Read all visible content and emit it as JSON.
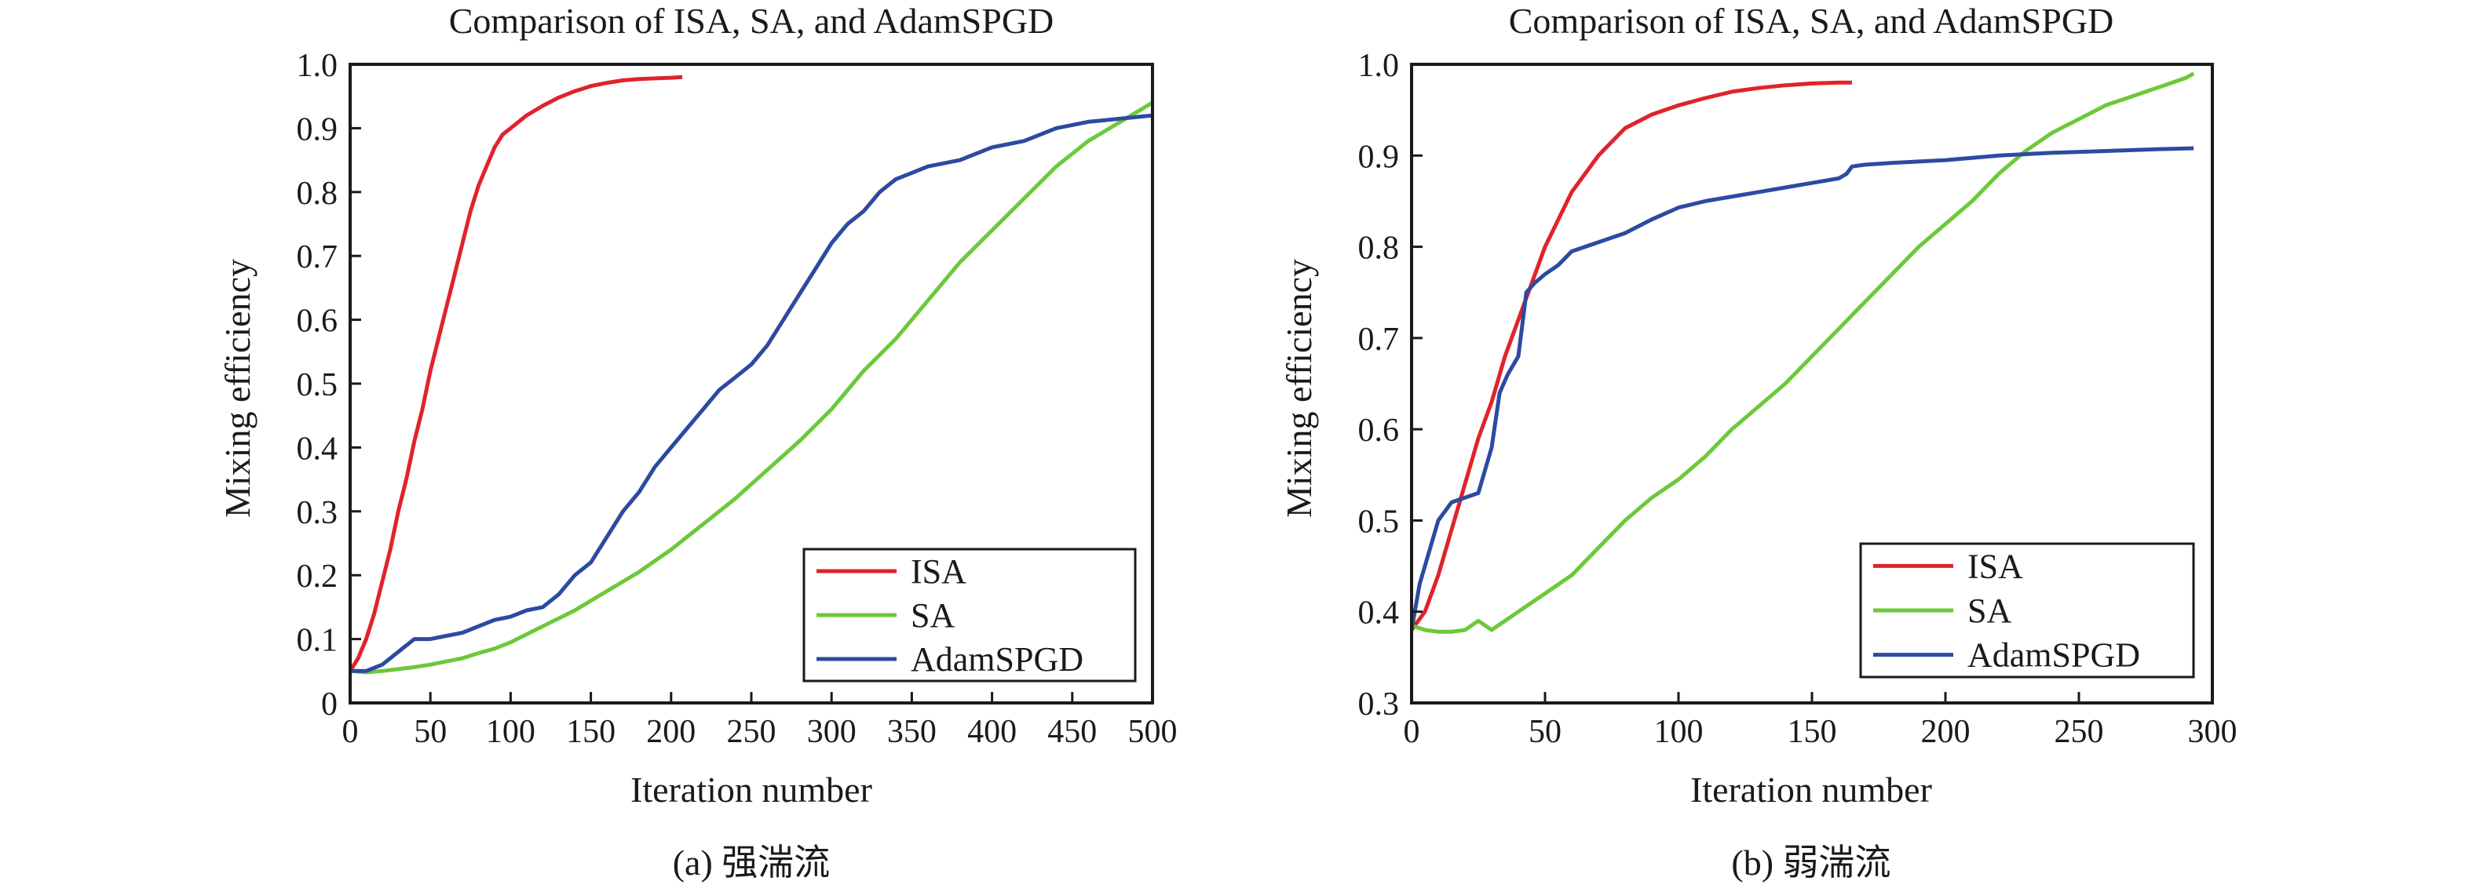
{
  "colors": {
    "ISA": "#e0232b",
    "SA": "#6cc93a",
    "AdamSPGD": "#2c4aa0",
    "axis": "#1a1a1a"
  },
  "chart_data": [
    {
      "type": "line",
      "title": "Comparison of ISA, SA, and AdamSPGD",
      "xlabel": "Iteration number",
      "ylabel": "Mixing efficiency",
      "caption": "(a) 强湍流",
      "xlim": [
        0,
        500
      ],
      "ylim": [
        0,
        1.0
      ],
      "xticks": [
        0,
        50,
        100,
        150,
        200,
        250,
        300,
        350,
        400,
        450,
        500
      ],
      "yticks": [
        0,
        0.1,
        0.2,
        0.3,
        0.4,
        0.5,
        0.6,
        0.7,
        0.8,
        0.9,
        1.0
      ],
      "xtick_labels": [
        "0",
        "50",
        "100",
        "150",
        "200",
        "250",
        "300",
        "350",
        "400",
        "450",
        "500"
      ],
      "ytick_labels": [
        "0",
        "0.1",
        "0.2",
        "0.3",
        "0.4",
        "0.5",
        "0.6",
        "0.7",
        "0.8",
        "0.9",
        "1.0"
      ],
      "grid": false,
      "legend_position": "bottom-right",
      "series": [
        {
          "name": "ISA",
          "x": [
            0,
            5,
            10,
            15,
            20,
            25,
            30,
            35,
            40,
            45,
            50,
            55,
            60,
            65,
            70,
            75,
            80,
            85,
            90,
            95,
            100,
            110,
            120,
            130,
            140,
            150,
            160,
            170,
            180,
            190,
            200,
            207
          ],
          "y": [
            0.05,
            0.07,
            0.1,
            0.14,
            0.19,
            0.24,
            0.3,
            0.35,
            0.41,
            0.46,
            0.52,
            0.57,
            0.62,
            0.67,
            0.72,
            0.77,
            0.81,
            0.84,
            0.87,
            0.89,
            0.9,
            0.92,
            0.935,
            0.948,
            0.958,
            0.966,
            0.971,
            0.975,
            0.977,
            0.978,
            0.979,
            0.98
          ]
        },
        {
          "name": "SA",
          "x": [
            0,
            10,
            20,
            30,
            40,
            50,
            60,
            70,
            80,
            90,
            100,
            120,
            140,
            160,
            180,
            200,
            220,
            240,
            260,
            280,
            300,
            320,
            340,
            360,
            380,
            400,
            420,
            440,
            460,
            480,
            500
          ],
          "y": [
            0.05,
            0.048,
            0.05,
            0.053,
            0.056,
            0.06,
            0.065,
            0.07,
            0.078,
            0.085,
            0.095,
            0.12,
            0.145,
            0.175,
            0.205,
            0.24,
            0.28,
            0.32,
            0.365,
            0.41,
            0.46,
            0.52,
            0.57,
            0.63,
            0.69,
            0.74,
            0.79,
            0.84,
            0.88,
            0.91,
            0.94
          ]
        },
        {
          "name": "AdamSPGD",
          "x": [
            0,
            10,
            20,
            30,
            40,
            50,
            60,
            70,
            80,
            90,
            100,
            110,
            120,
            130,
            140,
            150,
            160,
            170,
            180,
            190,
            200,
            210,
            220,
            230,
            240,
            250,
            260,
            270,
            280,
            290,
            300,
            310,
            320,
            330,
            340,
            350,
            360,
            380,
            400,
            420,
            440,
            460,
            480,
            500
          ],
          "y": [
            0.05,
            0.05,
            0.06,
            0.08,
            0.1,
            0.1,
            0.105,
            0.11,
            0.12,
            0.13,
            0.135,
            0.145,
            0.15,
            0.17,
            0.2,
            0.22,
            0.26,
            0.3,
            0.33,
            0.37,
            0.4,
            0.43,
            0.46,
            0.49,
            0.51,
            0.53,
            0.56,
            0.6,
            0.64,
            0.68,
            0.72,
            0.75,
            0.77,
            0.8,
            0.82,
            0.83,
            0.84,
            0.85,
            0.87,
            0.88,
            0.9,
            0.91,
            0.915,
            0.92
          ]
        }
      ]
    },
    {
      "type": "line",
      "title": "Comparison of ISA, SA, and AdamSPGD",
      "xlabel": "Iteration number",
      "ylabel": "Mixing efficiency",
      "caption": "(b) 弱湍流",
      "xlim": [
        0,
        300
      ],
      "ylim": [
        0.3,
        1.0
      ],
      "xticks": [
        0,
        50,
        100,
        150,
        200,
        250,
        300
      ],
      "yticks": [
        0.3,
        0.4,
        0.5,
        0.6,
        0.7,
        0.8,
        0.9,
        1.0
      ],
      "xtick_labels": [
        "0",
        "50",
        "100",
        "150",
        "200",
        "250",
        "300"
      ],
      "ytick_labels": [
        "0.3",
        "0.4",
        "0.5",
        "0.6",
        "0.7",
        "0.8",
        "0.9",
        "1.0"
      ],
      "grid": false,
      "legend_position": "bottom-right",
      "series": [
        {
          "name": "ISA",
          "x": [
            0,
            5,
            10,
            15,
            20,
            25,
            30,
            35,
            40,
            45,
            50,
            55,
            60,
            65,
            70,
            75,
            80,
            90,
            100,
            110,
            120,
            130,
            140,
            150,
            160,
            165
          ],
          "y": [
            0.38,
            0.4,
            0.44,
            0.49,
            0.54,
            0.59,
            0.63,
            0.68,
            0.72,
            0.76,
            0.8,
            0.83,
            0.86,
            0.88,
            0.9,
            0.915,
            0.93,
            0.945,
            0.955,
            0.963,
            0.97,
            0.974,
            0.977,
            0.979,
            0.98,
            0.98
          ]
        },
        {
          "name": "SA",
          "x": [
            0,
            5,
            10,
            15,
            20,
            25,
            30,
            40,
            50,
            60,
            70,
            80,
            90,
            100,
            110,
            120,
            130,
            140,
            150,
            160,
            170,
            180,
            190,
            200,
            210,
            220,
            230,
            240,
            250,
            260,
            270,
            280,
            290,
            293
          ],
          "y": [
            0.385,
            0.38,
            0.378,
            0.378,
            0.38,
            0.39,
            0.38,
            0.4,
            0.42,
            0.44,
            0.47,
            0.5,
            0.525,
            0.545,
            0.57,
            0.6,
            0.625,
            0.65,
            0.68,
            0.71,
            0.74,
            0.77,
            0.8,
            0.825,
            0.85,
            0.88,
            0.905,
            0.925,
            0.94,
            0.955,
            0.965,
            0.975,
            0.985,
            0.99
          ]
        },
        {
          "name": "AdamSPGD",
          "x": [
            0,
            3,
            6,
            10,
            15,
            20,
            25,
            30,
            33,
            36,
            40,
            43,
            46,
            50,
            55,
            60,
            70,
            80,
            90,
            100,
            110,
            120,
            130,
            140,
            150,
            160,
            163,
            165,
            170,
            180,
            200,
            220,
            240,
            260,
            280,
            293
          ],
          "y": [
            0.38,
            0.43,
            0.46,
            0.5,
            0.52,
            0.525,
            0.53,
            0.58,
            0.64,
            0.66,
            0.68,
            0.75,
            0.76,
            0.77,
            0.78,
            0.795,
            0.805,
            0.815,
            0.83,
            0.843,
            0.85,
            0.855,
            0.86,
            0.865,
            0.87,
            0.875,
            0.88,
            0.888,
            0.89,
            0.892,
            0.895,
            0.9,
            0.903,
            0.905,
            0.907,
            0.908
          ]
        }
      ]
    }
  ]
}
